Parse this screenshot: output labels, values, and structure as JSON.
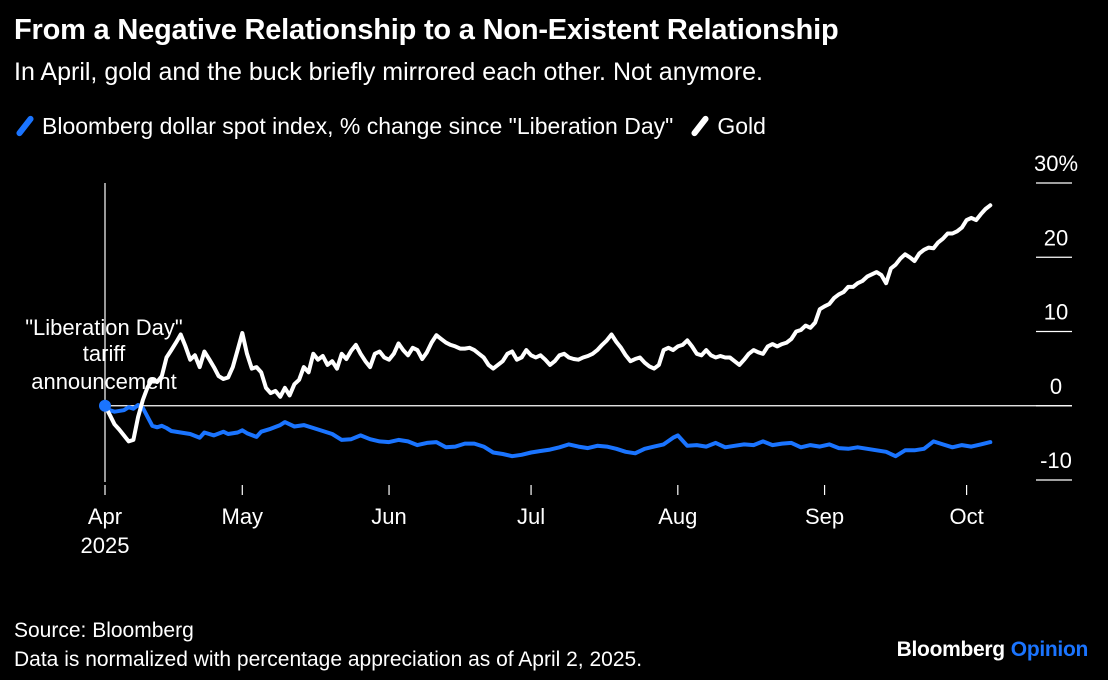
{
  "title": "From a Negative Relationship to a Non-Existent Relationship",
  "subtitle": "In April, gold and the buck briefly mirrored each other. Not anymore.",
  "footer": {
    "source": "Source: Bloomberg",
    "note": "Data is normalized with percentage appreciation as of April 2, 2025."
  },
  "brand": {
    "name": "Bloomberg",
    "suffix": "Opinion"
  },
  "colors": {
    "background": "#000000",
    "dollar": "#1a74ff",
    "gold": "#ffffff",
    "axis": "#ffffff"
  },
  "chart_data": {
    "type": "line",
    "x_unit": "days since Apr 2, 2025",
    "ylim": [
      -10,
      30
    ],
    "xlim": [
      0,
      188
    ],
    "y_ticks": [
      {
        "value": 30,
        "label": "30%"
      },
      {
        "value": 20,
        "label": "20"
      },
      {
        "value": 10,
        "label": "10"
      },
      {
        "value": 0,
        "label": "0"
      },
      {
        "value": -10,
        "label": "-10"
      }
    ],
    "x_ticks": [
      {
        "x": 0,
        "label": "Apr",
        "sublabel": "2025"
      },
      {
        "x": 29,
        "label": "May"
      },
      {
        "x": 60,
        "label": "Jun"
      },
      {
        "x": 90,
        "label": "Jul"
      },
      {
        "x": 121,
        "label": "Aug"
      },
      {
        "x": 152,
        "label": "Sep"
      },
      {
        "x": 182,
        "label": "Oct"
      }
    ],
    "annotation": {
      "x": 0,
      "lines": [
        "\"Liberation Day\"",
        "tariff",
        "announcement"
      ]
    },
    "series": [
      {
        "name": "Bloomberg dollar spot index, % change since \"Liberation Day\"",
        "color": "#1a74ff",
        "points": [
          [
            0,
            0
          ],
          [
            1,
            -0.6
          ],
          [
            2,
            -0.8
          ],
          [
            4,
            -0.6
          ],
          [
            5,
            -0.2
          ],
          [
            6,
            -0.4
          ],
          [
            7,
            0.1
          ],
          [
            8,
            -0.3
          ],
          [
            9,
            -1.5
          ],
          [
            10,
            -2.7
          ],
          [
            11,
            -2.9
          ],
          [
            12,
            -2.7
          ],
          [
            13,
            -3.0
          ],
          [
            14,
            -3.4
          ],
          [
            16,
            -3.6
          ],
          [
            18,
            -3.8
          ],
          [
            20,
            -4.3
          ],
          [
            21,
            -3.6
          ],
          [
            23,
            -4.0
          ],
          [
            25,
            -3.5
          ],
          [
            26,
            -3.8
          ],
          [
            28,
            -3.6
          ],
          [
            29,
            -3.3
          ],
          [
            30,
            -3.7
          ],
          [
            32,
            -4.2
          ],
          [
            33,
            -3.5
          ],
          [
            35,
            -3.1
          ],
          [
            37,
            -2.6
          ],
          [
            38,
            -2.2
          ],
          [
            40,
            -2.8
          ],
          [
            42,
            -2.6
          ],
          [
            44,
            -3.0
          ],
          [
            46,
            -3.4
          ],
          [
            48,
            -3.8
          ],
          [
            50,
            -4.6
          ],
          [
            52,
            -4.5
          ],
          [
            54,
            -4.0
          ],
          [
            56,
            -4.5
          ],
          [
            58,
            -4.8
          ],
          [
            60,
            -4.9
          ],
          [
            62,
            -4.6
          ],
          [
            64,
            -4.8
          ],
          [
            66,
            -5.3
          ],
          [
            68,
            -5.0
          ],
          [
            70,
            -4.9
          ],
          [
            72,
            -5.6
          ],
          [
            74,
            -5.5
          ],
          [
            76,
            -5.1
          ],
          [
            78,
            -5.1
          ],
          [
            80,
            -5.5
          ],
          [
            82,
            -6.3
          ],
          [
            84,
            -6.5
          ],
          [
            86,
            -6.8
          ],
          [
            88,
            -6.6
          ],
          [
            90,
            -6.3
          ],
          [
            92,
            -6.1
          ],
          [
            94,
            -5.9
          ],
          [
            96,
            -5.6
          ],
          [
            98,
            -5.2
          ],
          [
            100,
            -5.5
          ],
          [
            102,
            -5.7
          ],
          [
            104,
            -5.4
          ],
          [
            106,
            -5.5
          ],
          [
            108,
            -5.8
          ],
          [
            110,
            -6.2
          ],
          [
            112,
            -6.4
          ],
          [
            114,
            -5.8
          ],
          [
            116,
            -5.5
          ],
          [
            118,
            -5.2
          ],
          [
            120,
            -4.3
          ],
          [
            121,
            -4.0
          ],
          [
            123,
            -5.4
          ],
          [
            125,
            -5.3
          ],
          [
            127,
            -5.5
          ],
          [
            129,
            -5.0
          ],
          [
            131,
            -5.6
          ],
          [
            133,
            -5.4
          ],
          [
            135,
            -5.2
          ],
          [
            137,
            -5.3
          ],
          [
            139,
            -4.8
          ],
          [
            141,
            -5.3
          ],
          [
            143,
            -5.1
          ],
          [
            145,
            -5.0
          ],
          [
            147,
            -5.6
          ],
          [
            149,
            -5.3
          ],
          [
            151,
            -5.5
          ],
          [
            153,
            -5.2
          ],
          [
            155,
            -5.7
          ],
          [
            157,
            -5.8
          ],
          [
            159,
            -5.6
          ],
          [
            161,
            -5.8
          ],
          [
            163,
            -6.0
          ],
          [
            165,
            -6.2
          ],
          [
            167,
            -6.8
          ],
          [
            169,
            -6.0
          ],
          [
            171,
            -6.0
          ],
          [
            173,
            -5.8
          ],
          [
            175,
            -4.8
          ],
          [
            177,
            -5.2
          ],
          [
            179,
            -5.6
          ],
          [
            181,
            -5.3
          ],
          [
            183,
            -5.5
          ],
          [
            185,
            -5.2
          ],
          [
            187,
            -4.9
          ]
        ]
      },
      {
        "name": "Gold",
        "color": "#ffffff",
        "points": [
          [
            0,
            0
          ],
          [
            1,
            -1.2
          ],
          [
            2,
            -2.5
          ],
          [
            3,
            -3.2
          ],
          [
            4,
            -4.0
          ],
          [
            5,
            -4.8
          ],
          [
            6,
            -4.6
          ],
          [
            7,
            -1.5
          ],
          [
            8,
            0.8
          ],
          [
            9,
            2.5
          ],
          [
            10,
            3.5
          ],
          [
            11,
            3.2
          ],
          [
            12,
            4.0
          ],
          [
            13,
            6.5
          ],
          [
            14,
            7.5
          ],
          [
            15,
            8.5
          ],
          [
            16,
            9.6
          ],
          [
            17,
            8.0
          ],
          [
            18,
            6.2
          ],
          [
            19,
            6.8
          ],
          [
            20,
            5.2
          ],
          [
            21,
            7.3
          ],
          [
            22,
            6.3
          ],
          [
            23,
            5.2
          ],
          [
            24,
            4.0
          ],
          [
            25,
            3.6
          ],
          [
            26,
            3.8
          ],
          [
            27,
            5.2
          ],
          [
            28,
            7.5
          ],
          [
            29,
            9.8
          ],
          [
            30,
            7.0
          ],
          [
            31,
            5.0
          ],
          [
            32,
            5.2
          ],
          [
            33,
            4.5
          ],
          [
            34,
            2.4
          ],
          [
            35,
            1.7
          ],
          [
            36,
            2.0
          ],
          [
            37,
            1.2
          ],
          [
            38,
            2.4
          ],
          [
            39,
            1.4
          ],
          [
            40,
            2.9
          ],
          [
            41,
            3.5
          ],
          [
            42,
            5.2
          ],
          [
            43,
            4.5
          ],
          [
            44,
            7.0
          ],
          [
            45,
            6.2
          ],
          [
            46,
            6.7
          ],
          [
            47,
            5.5
          ],
          [
            48,
            6.0
          ],
          [
            49,
            5.0
          ],
          [
            50,
            7.0
          ],
          [
            51,
            6.3
          ],
          [
            52,
            7.4
          ],
          [
            53,
            8.2
          ],
          [
            54,
            7.0
          ],
          [
            55,
            6.0
          ],
          [
            56,
            5.2
          ],
          [
            57,
            7.0
          ],
          [
            58,
            7.3
          ],
          [
            59,
            6.5
          ],
          [
            60,
            6.2
          ],
          [
            61,
            7.0
          ],
          [
            62,
            8.4
          ],
          [
            63,
            7.5
          ],
          [
            64,
            6.8
          ],
          [
            65,
            7.8
          ],
          [
            66,
            7.5
          ],
          [
            67,
            6.3
          ],
          [
            68,
            7.2
          ],
          [
            69,
            8.5
          ],
          [
            70,
            9.5
          ],
          [
            71,
            9.0
          ],
          [
            72,
            8.5
          ],
          [
            73,
            8.2
          ],
          [
            74,
            8.0
          ],
          [
            75,
            7.7
          ],
          [
            76,
            7.7
          ],
          [
            77,
            7.8
          ],
          [
            78,
            7.5
          ],
          [
            79,
            7.0
          ],
          [
            80,
            6.5
          ],
          [
            81,
            5.5
          ],
          [
            82,
            5.0
          ],
          [
            83,
            5.5
          ],
          [
            84,
            6.0
          ],
          [
            85,
            7.0
          ],
          [
            86,
            7.3
          ],
          [
            87,
            6.2
          ],
          [
            88,
            6.5
          ],
          [
            89,
            7.5
          ],
          [
            90,
            6.8
          ],
          [
            91,
            6.5
          ],
          [
            92,
            6.8
          ],
          [
            93,
            6.2
          ],
          [
            94,
            5.5
          ],
          [
            95,
            6.0
          ],
          [
            96,
            6.8
          ],
          [
            97,
            7.0
          ],
          [
            98,
            6.5
          ],
          [
            99,
            6.3
          ],
          [
            100,
            6.2
          ],
          [
            101,
            6.5
          ],
          [
            102,
            6.7
          ],
          [
            103,
            7.0
          ],
          [
            104,
            7.5
          ],
          [
            105,
            8.2
          ],
          [
            106,
            8.8
          ],
          [
            107,
            9.6
          ],
          [
            108,
            8.6
          ],
          [
            109,
            7.8
          ],
          [
            110,
            6.8
          ],
          [
            111,
            6.0
          ],
          [
            112,
            6.3
          ],
          [
            113,
            6.5
          ],
          [
            114,
            5.8
          ],
          [
            115,
            5.3
          ],
          [
            116,
            5.0
          ],
          [
            117,
            5.5
          ],
          [
            118,
            7.5
          ],
          [
            119,
            7.8
          ],
          [
            120,
            7.5
          ],
          [
            121,
            8.0
          ],
          [
            122,
            8.2
          ],
          [
            123,
            8.8
          ],
          [
            124,
            8.0
          ],
          [
            125,
            7.0
          ],
          [
            126,
            6.8
          ],
          [
            127,
            7.5
          ],
          [
            128,
            6.8
          ],
          [
            129,
            6.5
          ],
          [
            130,
            6.7
          ],
          [
            131,
            6.5
          ],
          [
            132,
            6.5
          ],
          [
            133,
            6.0
          ],
          [
            134,
            5.5
          ],
          [
            135,
            6.2
          ],
          [
            136,
            7.0
          ],
          [
            137,
            7.5
          ],
          [
            138,
            7.2
          ],
          [
            139,
            7.0
          ],
          [
            140,
            8.0
          ],
          [
            141,
            8.3
          ],
          [
            142,
            8.0
          ],
          [
            143,
            8.3
          ],
          [
            144,
            8.5
          ],
          [
            145,
            9.0
          ],
          [
            146,
            10.0
          ],
          [
            147,
            10.2
          ],
          [
            148,
            10.8
          ],
          [
            149,
            10.5
          ],
          [
            150,
            11.2
          ],
          [
            151,
            13.0
          ],
          [
            152,
            13.4
          ],
          [
            153,
            13.7
          ],
          [
            154,
            14.5
          ],
          [
            155,
            15.0
          ],
          [
            156,
            15.3
          ],
          [
            157,
            16.0
          ],
          [
            158,
            16.0
          ],
          [
            159,
            16.5
          ],
          [
            160,
            16.8
          ],
          [
            161,
            17.4
          ],
          [
            162,
            17.7
          ],
          [
            163,
            18.0
          ],
          [
            164,
            17.6
          ],
          [
            165,
            16.5
          ],
          [
            166,
            18.5
          ],
          [
            167,
            19.0
          ],
          [
            168,
            19.8
          ],
          [
            169,
            20.4
          ],
          [
            170,
            20.0
          ],
          [
            171,
            19.5
          ],
          [
            172,
            20.5
          ],
          [
            173,
            21.0
          ],
          [
            174,
            21.3
          ],
          [
            175,
            21.2
          ],
          [
            176,
            22.0
          ],
          [
            177,
            22.5
          ],
          [
            178,
            23.2
          ],
          [
            179,
            23.2
          ],
          [
            180,
            23.5
          ],
          [
            181,
            24.0
          ],
          [
            182,
            25.0
          ],
          [
            183,
            25.3
          ],
          [
            184,
            25.0
          ],
          [
            185,
            25.8
          ],
          [
            186,
            26.5
          ],
          [
            187,
            27.0
          ]
        ]
      }
    ]
  }
}
